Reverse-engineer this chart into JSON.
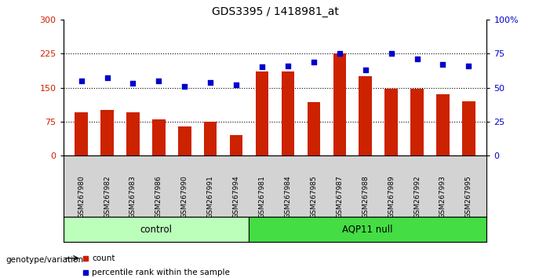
{
  "title": "GDS3395 / 1418981_at",
  "categories": [
    "GSM267980",
    "GSM267982",
    "GSM267983",
    "GSM267986",
    "GSM267990",
    "GSM267991",
    "GSM267994",
    "GSM267981",
    "GSM267984",
    "GSM267985",
    "GSM267987",
    "GSM267988",
    "GSM267989",
    "GSM267992",
    "GSM267993",
    "GSM267995"
  ],
  "count_values": [
    95,
    100,
    95,
    80,
    65,
    75,
    45,
    185,
    185,
    118,
    225,
    175,
    148,
    147,
    135,
    120
  ],
  "percentile_values": [
    55,
    57,
    53,
    55,
    51,
    54,
    52,
    65,
    66,
    69,
    75,
    63,
    75,
    71,
    67,
    66
  ],
  "control_count": 7,
  "control_label": "control",
  "aqp11_label": "AQP11 null",
  "control_color": "#bbffbb",
  "aqp11_color": "#44dd44",
  "bar_color": "#cc2200",
  "dot_color": "#0000cc",
  "ylim_left": [
    0,
    300
  ],
  "ylim_right": [
    0,
    100
  ],
  "yticks_left": [
    0,
    75,
    150,
    225,
    300
  ],
  "yticks_right": [
    0,
    25,
    50,
    75,
    100
  ],
  "ytick_labels_right": [
    "0",
    "25",
    "50",
    "75",
    "100%"
  ],
  "hlines": [
    75,
    150,
    225
  ],
  "legend_count_label": "count",
  "legend_pct_label": "percentile rank within the sample",
  "genotype_label": "genotype/variation",
  "bg_color": "#ffffff",
  "xticklabel_bg": "#d3d3d3"
}
